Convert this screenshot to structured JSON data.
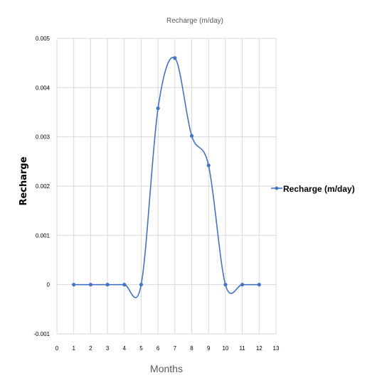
{
  "chart_data": {
    "type": "line",
    "title": "Recharge (m/day)",
    "xlabel": "Months",
    "ylabel": "Recharge",
    "xlim": [
      0,
      13
    ],
    "ylim": [
      -0.001,
      0.005
    ],
    "x_ticks": [
      "0",
      "1",
      "2",
      "3",
      "4",
      "5",
      "6",
      "7",
      "8",
      "9",
      "10",
      "11",
      "12",
      "13"
    ],
    "y_ticks": [
      "-0.001",
      "0",
      "0.001",
      "0.002",
      "0.003",
      "0.004",
      "0.005"
    ],
    "grid": true,
    "legend_position": "right",
    "smooth": true,
    "series": [
      {
        "name": "Recharge (m/day)",
        "color": "#4472c4",
        "x": [
          1,
          2,
          3,
          4,
          5,
          6,
          7,
          8,
          9,
          10,
          11,
          12
        ],
        "values": [
          0,
          0,
          0,
          0,
          0,
          0.00358,
          0.0046,
          0.00302,
          0.00242,
          0,
          0,
          0
        ]
      }
    ]
  }
}
